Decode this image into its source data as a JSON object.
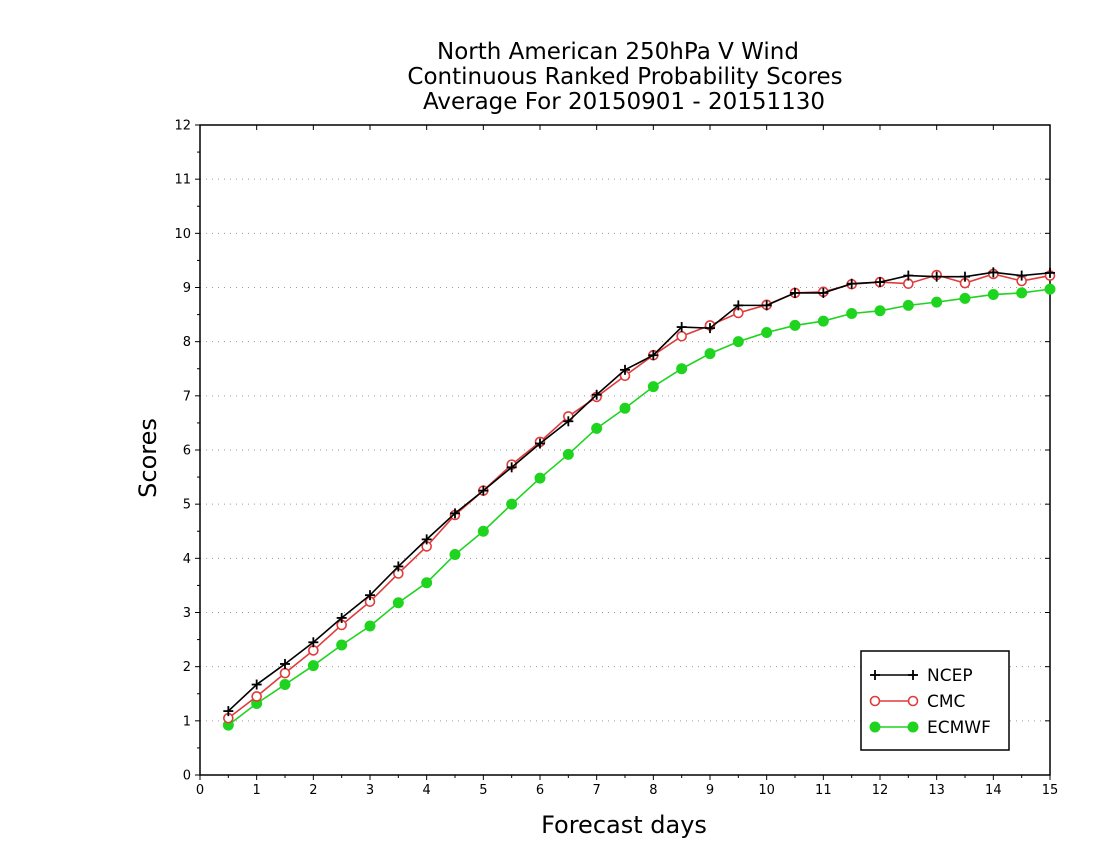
{
  "chart_data": {
    "type": "line",
    "title_lines": [
      "North American 250hPa V Wind",
      "Continuous Ranked Probability Scores",
      "Average For 20150901 - 20151130"
    ],
    "xlabel": "Forecast days",
    "ylabel": "Scores",
    "xlim": [
      0,
      15
    ],
    "ylim": [
      0,
      12
    ],
    "xticks": [
      "0",
      "1",
      "2",
      "3",
      "4",
      "5",
      "6",
      "7",
      "8",
      "9",
      "10",
      "11",
      "12",
      "13",
      "14",
      "15"
    ],
    "yticks": [
      "0",
      "1",
      "2",
      "3",
      "4",
      "5",
      "6",
      "7",
      "8",
      "9",
      "10",
      "11",
      "12"
    ],
    "grid": "horizontal-dotted",
    "legend_position": "bottom-right",
    "x": [
      0.5,
      1,
      1.5,
      2,
      2.5,
      3,
      3.5,
      4,
      4.5,
      5,
      5.5,
      6,
      6.5,
      7,
      7.5,
      8,
      8.5,
      9,
      9.5,
      10,
      10.5,
      11,
      11.5,
      12,
      12.5,
      13,
      13.5,
      14,
      14.5,
      15
    ],
    "series": [
      {
        "name": "NCEP",
        "color": "#000000",
        "marker": "plus",
        "values": [
          1.18,
          1.67,
          2.05,
          2.45,
          2.9,
          3.32,
          3.85,
          4.35,
          4.83,
          5.25,
          5.68,
          6.12,
          6.53,
          7.02,
          7.48,
          7.75,
          8.27,
          8.25,
          8.67,
          8.67,
          8.9,
          8.9,
          9.07,
          9.1,
          9.22,
          9.2,
          9.2,
          9.28,
          9.22,
          9.27
        ]
      },
      {
        "name": "CMC",
        "color": "#e03c3c",
        "marker": "open-circle",
        "values": [
          1.05,
          1.45,
          1.88,
          2.3,
          2.77,
          3.2,
          3.72,
          4.22,
          4.8,
          5.25,
          5.73,
          6.15,
          6.62,
          6.98,
          7.37,
          7.75,
          8.1,
          8.3,
          8.53,
          8.68,
          8.9,
          8.92,
          9.06,
          9.1,
          9.07,
          9.23,
          9.08,
          9.25,
          9.12,
          9.22
        ]
      },
      {
        "name": "ECMWF",
        "color": "#1fd41f",
        "marker": "filled-circle",
        "values": [
          0.92,
          1.32,
          1.67,
          2.02,
          2.4,
          2.75,
          3.18,
          3.55,
          4.07,
          4.5,
          5.0,
          5.48,
          5.92,
          6.4,
          6.77,
          7.17,
          7.5,
          7.78,
          8.0,
          8.17,
          8.3,
          8.38,
          8.52,
          8.57,
          8.67,
          8.73,
          8.8,
          8.87,
          8.9,
          8.97
        ]
      }
    ]
  }
}
